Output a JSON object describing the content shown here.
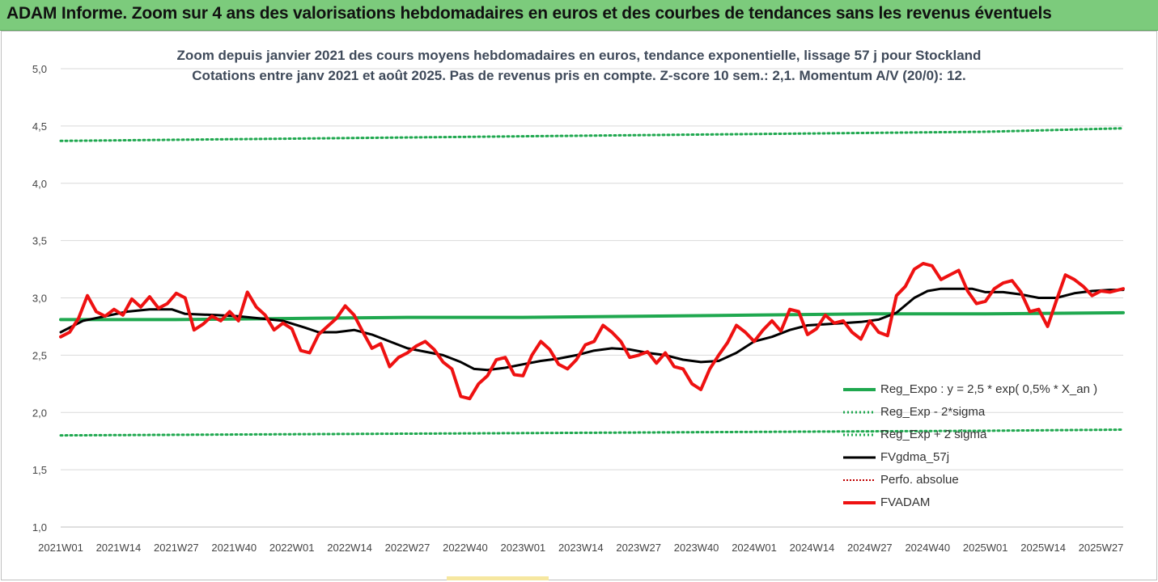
{
  "banner": {
    "title": "ADAM Informe. Zoom sur 4 ans des valorisations hebdomadaires en euros et des courbes de tendances sans les revenus éventuels"
  },
  "colors": {
    "banner_bg": "#7ccb7c",
    "reg_expo": "#1fa84f",
    "fv_gdma": "#000000",
    "perfo_absolue": "#c00000",
    "fvadam": "#ee1111",
    "grid": "#d9d9d9"
  },
  "chart_data": {
    "type": "line",
    "title": "Zoom depuis janvier 2021 des cours moyens hebdomadaires en euros, tendance exponentielle, lissage 57 j pour Stockland",
    "subtitle": "Cotations entre janv 2021 et août 2025. Pas de revenus pris en compte. Z-score 10 sem.: 2,1. Momentum A/V (20/0): 12.",
    "x_unit": "week index (0 = 2021W01)",
    "ylim": [
      1.0,
      5.0
    ],
    "yticks": [
      "1,0",
      "1,5",
      "2,0",
      "2,5",
      "3,0",
      "3,5",
      "4,0",
      "4,5",
      "5,0"
    ],
    "ytick_values": [
      1.0,
      1.5,
      2.0,
      2.5,
      3.0,
      3.5,
      4.0,
      4.5,
      5.0
    ],
    "xticks": [
      "2021W01",
      "2021W14",
      "2021W27",
      "2021W40",
      "2022W01",
      "2022W14",
      "2022W27",
      "2022W40",
      "2023W01",
      "2023W14",
      "2023W27",
      "2023W40",
      "2024W01",
      "2024W14",
      "2024W27",
      "2024W40",
      "2025W01",
      "2025W14",
      "2025W27"
    ],
    "xtick_weeks": [
      0,
      13,
      26,
      39,
      52,
      65,
      78,
      91,
      104,
      117,
      130,
      143,
      156,
      169,
      182,
      195,
      208,
      221,
      234
    ],
    "x_range": [
      0,
      239
    ],
    "grid": "horizontal",
    "legend_position": "bottom-right inside plot",
    "series": [
      {
        "name": "Reg_Expo : y = 2,5 * exp( 0,5% *  X_an )",
        "style": "solid-thick",
        "color": "#1fa84f",
        "points": [
          [
            0,
            2.81
          ],
          [
            26,
            2.81
          ],
          [
            52,
            2.82
          ],
          [
            78,
            2.83
          ],
          [
            104,
            2.83
          ],
          [
            130,
            2.84
          ],
          [
            156,
            2.85
          ],
          [
            182,
            2.86
          ],
          [
            208,
            2.86
          ],
          [
            239,
            2.87
          ]
        ]
      },
      {
        "name": "Reg_Exp - 2*sigma",
        "style": "dotted",
        "color": "#1fa84f",
        "points": [
          [
            0,
            1.8
          ],
          [
            52,
            1.81
          ],
          [
            104,
            1.82
          ],
          [
            156,
            1.83
          ],
          [
            208,
            1.84
          ],
          [
            239,
            1.85
          ]
        ]
      },
      {
        "name": "Reg_Exp + 2 sigma",
        "style": "dotted",
        "color": "#1fa84f",
        "points": [
          [
            0,
            4.37
          ],
          [
            52,
            4.39
          ],
          [
            104,
            4.41
          ],
          [
            156,
            4.43
          ],
          [
            208,
            4.45
          ],
          [
            239,
            4.48
          ]
        ]
      },
      {
        "name": "FVgdma_57j",
        "style": "solid",
        "color": "#000000",
        "points": [
          [
            0,
            2.7
          ],
          [
            5,
            2.8
          ],
          [
            10,
            2.84
          ],
          [
            15,
            2.88
          ],
          [
            20,
            2.9
          ],
          [
            25,
            2.9
          ],
          [
            28,
            2.86
          ],
          [
            35,
            2.85
          ],
          [
            40,
            2.84
          ],
          [
            45,
            2.82
          ],
          [
            50,
            2.8
          ],
          [
            55,
            2.74
          ],
          [
            58,
            2.7
          ],
          [
            62,
            2.7
          ],
          [
            66,
            2.72
          ],
          [
            70,
            2.68
          ],
          [
            74,
            2.62
          ],
          [
            78,
            2.56
          ],
          [
            82,
            2.53
          ],
          [
            86,
            2.5
          ],
          [
            90,
            2.44
          ],
          [
            93,
            2.38
          ],
          [
            96,
            2.37
          ],
          [
            100,
            2.39
          ],
          [
            104,
            2.42
          ],
          [
            108,
            2.45
          ],
          [
            112,
            2.47
          ],
          [
            116,
            2.5
          ],
          [
            120,
            2.54
          ],
          [
            124,
            2.56
          ],
          [
            128,
            2.55
          ],
          [
            132,
            2.52
          ],
          [
            136,
            2.5
          ],
          [
            140,
            2.46
          ],
          [
            144,
            2.44
          ],
          [
            148,
            2.45
          ],
          [
            152,
            2.52
          ],
          [
            156,
            2.62
          ],
          [
            160,
            2.66
          ],
          [
            164,
            2.72
          ],
          [
            168,
            2.76
          ],
          [
            172,
            2.77
          ],
          [
            176,
            2.78
          ],
          [
            180,
            2.79
          ],
          [
            184,
            2.81
          ],
          [
            188,
            2.87
          ],
          [
            192,
            3.0
          ],
          [
            195,
            3.06
          ],
          [
            198,
            3.08
          ],
          [
            202,
            3.08
          ],
          [
            205,
            3.08
          ],
          [
            208,
            3.05
          ],
          [
            212,
            3.05
          ],
          [
            216,
            3.03
          ],
          [
            220,
            3.0
          ],
          [
            224,
            3.0
          ],
          [
            228,
            3.04
          ],
          [
            232,
            3.06
          ],
          [
            236,
            3.07
          ],
          [
            239,
            3.07
          ]
        ]
      },
      {
        "name": "Perfo. absolue",
        "style": "dotted",
        "color": "#c00000",
        "points": []
      },
      {
        "name": "FVADAM",
        "style": "solid-thick",
        "color": "#ee1111",
        "points": [
          [
            0,
            2.66
          ],
          [
            2,
            2.7
          ],
          [
            4,
            2.82
          ],
          [
            6,
            3.02
          ],
          [
            8,
            2.88
          ],
          [
            10,
            2.84
          ],
          [
            12,
            2.9
          ],
          [
            14,
            2.85
          ],
          [
            16,
            2.99
          ],
          [
            18,
            2.92
          ],
          [
            20,
            3.01
          ],
          [
            22,
            2.91
          ],
          [
            24,
            2.95
          ],
          [
            26,
            3.04
          ],
          [
            28,
            3.0
          ],
          [
            30,
            2.72
          ],
          [
            32,
            2.77
          ],
          [
            34,
            2.84
          ],
          [
            36,
            2.8
          ],
          [
            38,
            2.88
          ],
          [
            40,
            2.8
          ],
          [
            42,
            3.05
          ],
          [
            44,
            2.92
          ],
          [
            46,
            2.85
          ],
          [
            48,
            2.72
          ],
          [
            50,
            2.78
          ],
          [
            52,
            2.73
          ],
          [
            54,
            2.54
          ],
          [
            56,
            2.52
          ],
          [
            58,
            2.68
          ],
          [
            60,
            2.75
          ],
          [
            62,
            2.82
          ],
          [
            64,
            2.93
          ],
          [
            66,
            2.85
          ],
          [
            68,
            2.7
          ],
          [
            70,
            2.56
          ],
          [
            72,
            2.6
          ],
          [
            74,
            2.4
          ],
          [
            76,
            2.48
          ],
          [
            78,
            2.52
          ],
          [
            80,
            2.58
          ],
          [
            82,
            2.62
          ],
          [
            84,
            2.55
          ],
          [
            86,
            2.44
          ],
          [
            88,
            2.38
          ],
          [
            90,
            2.14
          ],
          [
            92,
            2.12
          ],
          [
            94,
            2.25
          ],
          [
            96,
            2.32
          ],
          [
            98,
            2.46
          ],
          [
            100,
            2.48
          ],
          [
            102,
            2.33
          ],
          [
            104,
            2.32
          ],
          [
            106,
            2.5
          ],
          [
            108,
            2.62
          ],
          [
            110,
            2.55
          ],
          [
            112,
            2.42
          ],
          [
            114,
            2.38
          ],
          [
            116,
            2.46
          ],
          [
            118,
            2.59
          ],
          [
            120,
            2.62
          ],
          [
            122,
            2.76
          ],
          [
            124,
            2.7
          ],
          [
            126,
            2.62
          ],
          [
            128,
            2.48
          ],
          [
            130,
            2.5
          ],
          [
            132,
            2.53
          ],
          [
            134,
            2.43
          ],
          [
            136,
            2.52
          ],
          [
            138,
            2.4
          ],
          [
            140,
            2.38
          ],
          [
            142,
            2.25
          ],
          [
            144,
            2.2
          ],
          [
            146,
            2.38
          ],
          [
            148,
            2.5
          ],
          [
            150,
            2.61
          ],
          [
            152,
            2.76
          ],
          [
            154,
            2.7
          ],
          [
            156,
            2.62
          ],
          [
            158,
            2.72
          ],
          [
            160,
            2.8
          ],
          [
            162,
            2.71
          ],
          [
            164,
            2.9
          ],
          [
            166,
            2.88
          ],
          [
            168,
            2.68
          ],
          [
            170,
            2.73
          ],
          [
            172,
            2.85
          ],
          [
            174,
            2.78
          ],
          [
            176,
            2.8
          ],
          [
            178,
            2.7
          ],
          [
            180,
            2.64
          ],
          [
            182,
            2.8
          ],
          [
            184,
            2.7
          ],
          [
            186,
            2.67
          ],
          [
            188,
            3.02
          ],
          [
            190,
            3.1
          ],
          [
            192,
            3.25
          ],
          [
            194,
            3.3
          ],
          [
            196,
            3.28
          ],
          [
            198,
            3.16
          ],
          [
            200,
            3.2
          ],
          [
            202,
            3.24
          ],
          [
            204,
            3.06
          ],
          [
            206,
            2.95
          ],
          [
            208,
            2.97
          ],
          [
            210,
            3.08
          ],
          [
            212,
            3.13
          ],
          [
            214,
            3.15
          ],
          [
            216,
            3.05
          ],
          [
            218,
            2.88
          ],
          [
            220,
            2.9
          ],
          [
            222,
            2.75
          ],
          [
            224,
            2.98
          ],
          [
            226,
            3.2
          ],
          [
            228,
            3.16
          ],
          [
            230,
            3.1
          ],
          [
            232,
            3.02
          ],
          [
            234,
            3.06
          ],
          [
            236,
            3.05
          ],
          [
            239,
            3.08
          ]
        ]
      }
    ]
  }
}
